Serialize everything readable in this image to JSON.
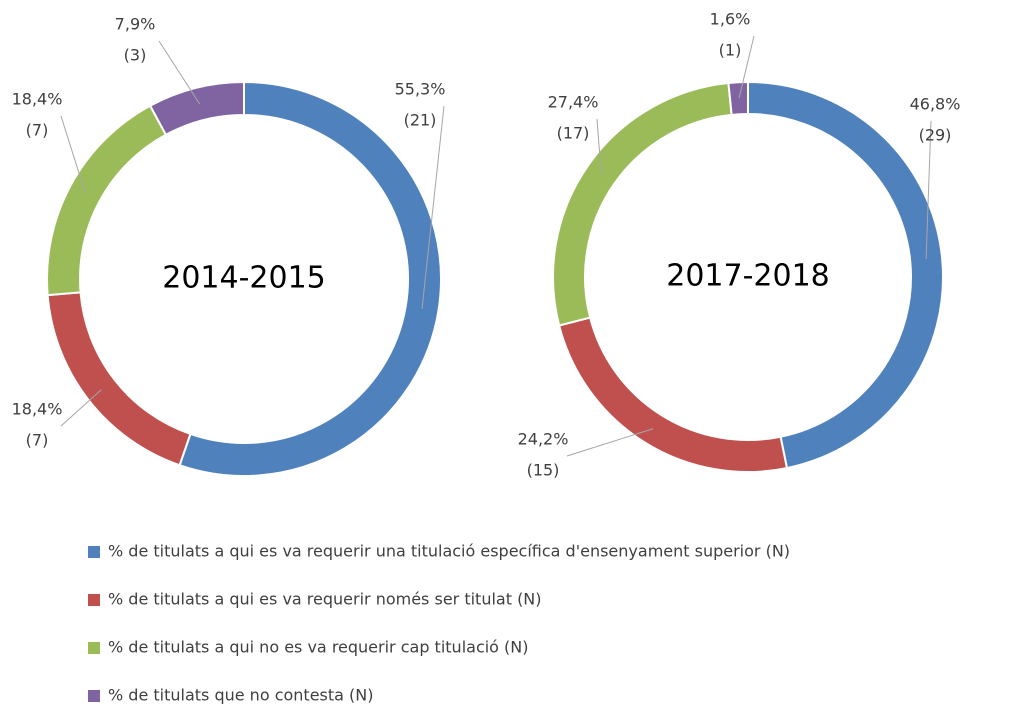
{
  "chart_data": [
    {
      "type": "donut",
      "title": "2014-2015",
      "values": [
        55.3,
        18.4,
        18.4,
        7.9
      ],
      "value_labels": [
        "55,3%",
        "18,4%",
        "18,4%",
        "7,9%"
      ],
      "counts": [
        21,
        7,
        7,
        3
      ],
      "count_labels": [
        "(21)",
        "(7)",
        "(7)",
        "(3)"
      ]
    },
    {
      "type": "donut",
      "title": "2017-2018",
      "values": [
        46.8,
        24.2,
        27.4,
        1.6
      ],
      "value_labels": [
        "46,8%",
        "24,2%",
        "27,4%",
        "1,6%"
      ],
      "counts": [
        29,
        15,
        17,
        1
      ],
      "count_labels": [
        "(29)",
        "(15)",
        "(17)",
        "(1)"
      ]
    }
  ],
  "legend": {
    "categories": [
      "% de titulats a qui es va requerir una titulació específica d'ensenyament superior (N)",
      "% de titulats a qui es va requerir només ser titulat (N)",
      "% de titulats a qui no es va requerir cap titulació (N)",
      "% de titulats que no contesta (N)"
    ],
    "colors": [
      "#4f81bd",
      "#c0504d",
      "#9bbb59",
      "#8064a2"
    ]
  }
}
